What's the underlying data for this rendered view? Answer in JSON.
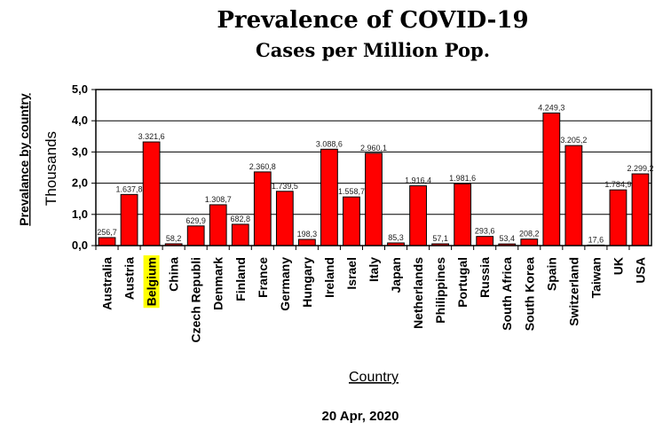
{
  "chart_data": {
    "type": "bar",
    "title": "Prevalence of COVID-19",
    "subtitle": "Cases per Million Pop.",
    "ylabel_primary": "Prevalance by country",
    "ylabel_secondary": "Thousands",
    "xlabel": "Country",
    "footer": "20 Apr, 2020",
    "ylim": [
      0,
      5
    ],
    "yticks": [
      "0,0",
      "1,0",
      "2,0",
      "3,0",
      "4,0",
      "5,0"
    ],
    "grid": true,
    "bar_color": "#ff0000",
    "highlight_color": "#ffff00",
    "highlight_category": "Belgium",
    "categories": [
      "Australia",
      "Austria",
      "Belgium",
      "China",
      "Czech Republi",
      "Denmark",
      "Finland",
      "France",
      "Germany",
      "Hungary",
      "Ireland",
      "Israel",
      "Italy",
      "Japan",
      "Netherlands",
      "Philippines",
      "Portugal",
      "Russia",
      "South Africa",
      "South Korea",
      "Spain",
      "Switzerland",
      "Taiwan",
      "UK",
      "USA"
    ],
    "values": [
      0.2567,
      1.6378,
      3.3216,
      0.0582,
      0.6299,
      1.3087,
      0.6828,
      2.3608,
      1.7395,
      0.1983,
      3.0886,
      1.5587,
      2.9601,
      0.0853,
      1.9164,
      0.0571,
      1.9816,
      0.2936,
      0.0534,
      0.2082,
      4.2493,
      3.2052,
      0.0176,
      1.7849,
      2.2992
    ],
    "data_labels": [
      "256,7",
      "1.637,8",
      "3.321,6",
      "58,2",
      "629,9",
      "1.308,7",
      "682,8",
      "2.360,8",
      "1.739,5",
      "198,3",
      "3.088,6",
      "1.558,7",
      "2.960,1",
      "85,3",
      "1.916,4",
      "57,1",
      "1.981,6",
      "293,6",
      "53,4",
      "208,2",
      "4.249,3",
      "3.205,2",
      "17,6",
      "1.784,9",
      "2.299,2"
    ]
  }
}
